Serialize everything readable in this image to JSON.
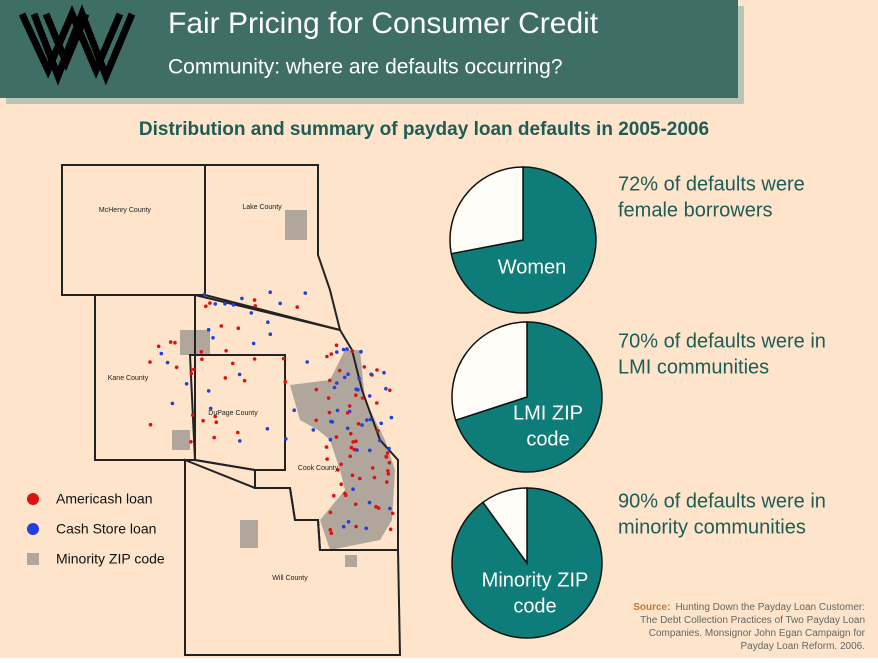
{
  "header": {
    "title": "Fair Pricing for Consumer Credit",
    "subtitle": "Community: where are defaults occurring?"
  },
  "heading": "Distribution and summary of payday loan defaults in 2005-2006",
  "map": {
    "counties": [
      "McHenry County",
      "Lake County",
      "Kane County",
      "DuPage County",
      "Cook County",
      "Will County"
    ],
    "legend": [
      {
        "label": "Americash loan",
        "color": "#e01010"
      },
      {
        "label": "Cash Store loan",
        "color": "#2040e0"
      },
      {
        "label": "Minority ZIP code",
        "color": "#b0a69c"
      }
    ]
  },
  "pies": [
    {
      "type": "pie",
      "values": [
        72,
        28
      ],
      "colors": [
        "#0e7c78",
        "#fffdf8"
      ],
      "label": [
        "Women"
      ],
      "caption": [
        "72% of defaults were",
        "female borrowers"
      ]
    },
    {
      "type": "pie",
      "values": [
        70,
        30
      ],
      "colors": [
        "#0e7c78",
        "#fffdf8"
      ],
      "label": [
        "LMI ZIP",
        "code"
      ],
      "caption": [
        "70% of defaults were in",
        "LMI communities"
      ]
    },
    {
      "type": "pie",
      "values": [
        90,
        10
      ],
      "colors": [
        "#0e7c78",
        "#fffdf8"
      ],
      "label": [
        "Minority ZIP",
        "code"
      ],
      "caption": [
        "90% of defaults were in",
        "minority communities"
      ]
    }
  ],
  "source": {
    "label": "Source:",
    "lines": [
      "Hunting Down the Payday Loan Customer:",
      "The Debt Collection Practices of Two Payday Loan",
      "Companies.  Monsignor John Egan Campaign for",
      "Payday Loan Reform.  2006."
    ]
  }
}
